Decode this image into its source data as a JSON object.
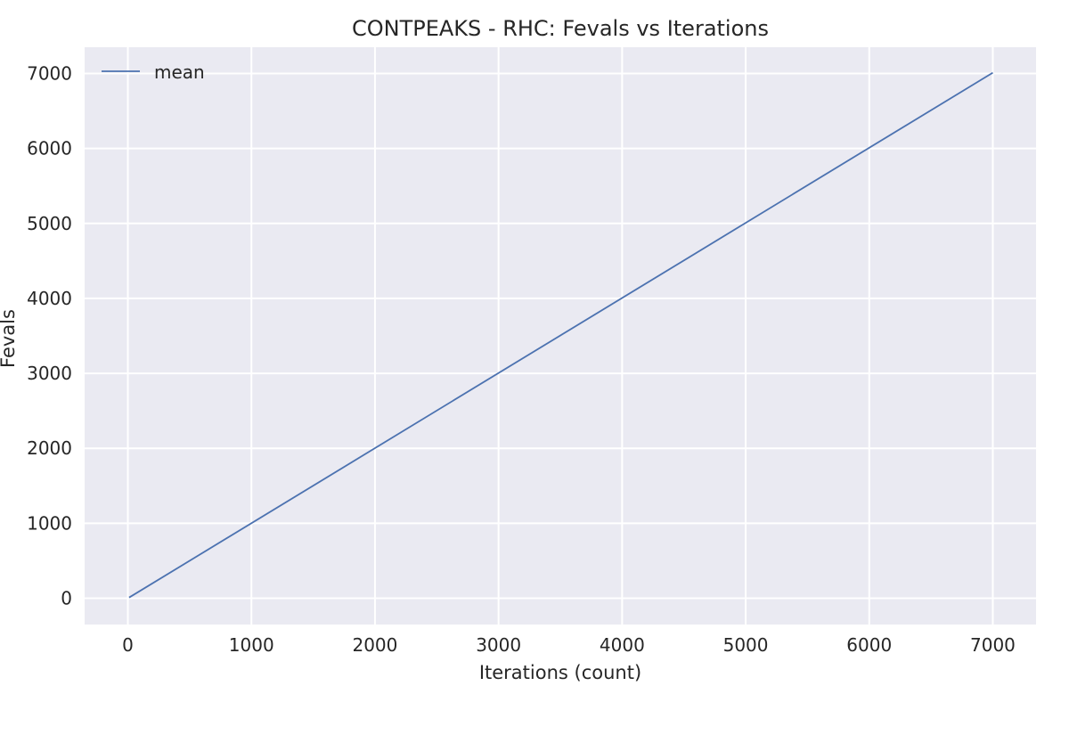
{
  "chart_data": {
    "type": "line",
    "title": "CONTPEAKS - RHC: Fevals vs Iterations",
    "xlabel": "Iterations (count)",
    "ylabel": "Fevals",
    "xlim": [
      -350,
      7350
    ],
    "ylim": [
      -350,
      7350
    ],
    "xticks": [
      0,
      1000,
      2000,
      3000,
      4000,
      5000,
      6000,
      7000
    ],
    "yticks": [
      0,
      1000,
      2000,
      3000,
      4000,
      5000,
      6000,
      7000
    ],
    "grid": true,
    "legend_position": "top-left",
    "series": [
      {
        "name": "mean",
        "color": "#4c72b0",
        "x": [
          10,
          7000
        ],
        "y": [
          10,
          7010
        ]
      }
    ]
  }
}
